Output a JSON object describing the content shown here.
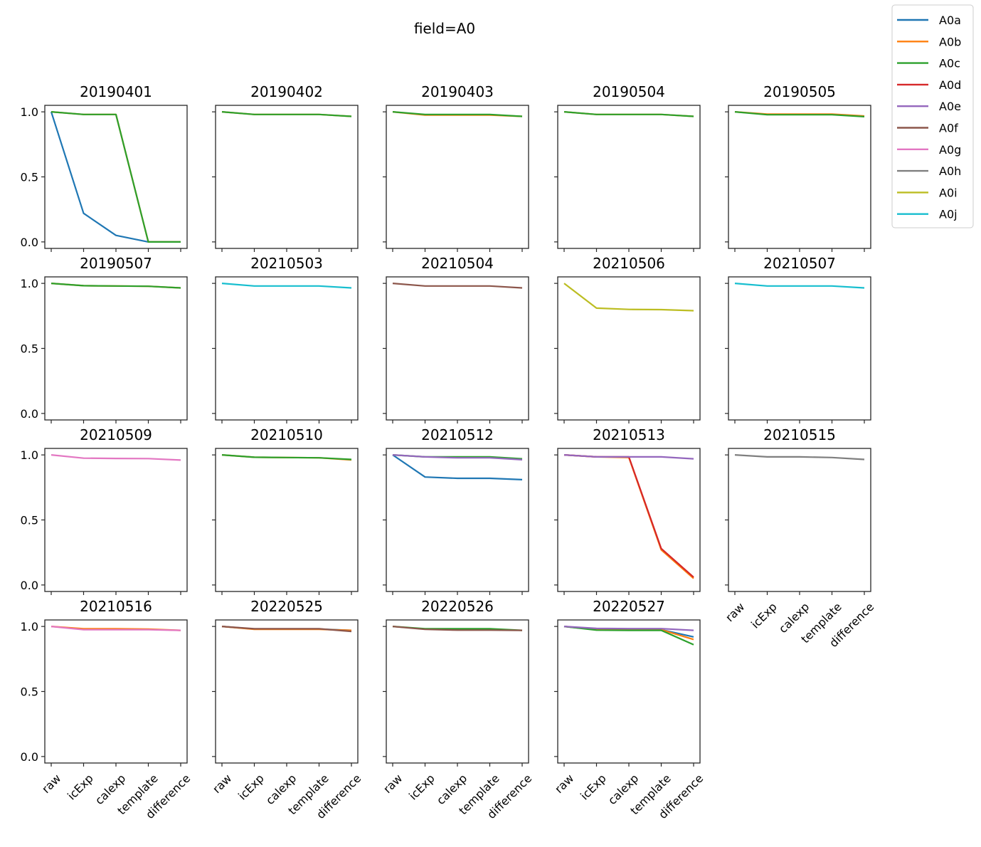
{
  "chart_data": {
    "type": "line",
    "title": "field=A0",
    "xlabel": "",
    "ylabel": "",
    "categories": [
      "raw",
      "icExp",
      "calexp",
      "template",
      "difference"
    ],
    "ylim": [
      -0.05,
      1.05
    ],
    "yticks": [
      0.0,
      0.5,
      1.0
    ],
    "ytick_labels": [
      "0.0",
      "0.5",
      "1.0"
    ],
    "grid": false,
    "legend_placement": "top-right (outside)",
    "legend": [
      {
        "name": "A0a",
        "color": "#1f77b4"
      },
      {
        "name": "A0b",
        "color": "#ff7f0e"
      },
      {
        "name": "A0c",
        "color": "#2ca02c"
      },
      {
        "name": "A0d",
        "color": "#d62728"
      },
      {
        "name": "A0e",
        "color": "#9467bd"
      },
      {
        "name": "A0f",
        "color": "#8c564b"
      },
      {
        "name": "A0g",
        "color": "#e377c2"
      },
      {
        "name": "A0h",
        "color": "#7f7f7f"
      },
      {
        "name": "A0i",
        "color": "#bcbd22"
      },
      {
        "name": "A0j",
        "color": "#17becf"
      }
    ],
    "panels": [
      {
        "title": "20190401",
        "series": [
          {
            "name": "A0a",
            "values": [
              1.0,
              0.22,
              0.05,
              0.0,
              0.0
            ]
          },
          {
            "name": "A0b",
            "values": [
              1.0,
              0.98,
              0.98,
              0.0,
              0.0
            ]
          },
          {
            "name": "A0c",
            "values": [
              1.0,
              0.98,
              0.98,
              0.0,
              0.0
            ]
          }
        ]
      },
      {
        "title": "20190402",
        "series": [
          {
            "name": "A0b",
            "values": [
              1.0,
              0.98,
              0.98,
              0.98,
              0.965
            ]
          },
          {
            "name": "A0c",
            "values": [
              1.0,
              0.98,
              0.98,
              0.98,
              0.965
            ]
          }
        ]
      },
      {
        "title": "20190403",
        "series": [
          {
            "name": "A0b",
            "values": [
              1.0,
              0.975,
              0.975,
              0.975,
              0.965
            ]
          },
          {
            "name": "A0c",
            "values": [
              1.0,
              0.98,
              0.98,
              0.98,
              0.965
            ]
          }
        ]
      },
      {
        "title": "20190504",
        "series": [
          {
            "name": "A0b",
            "values": [
              1.0,
              0.98,
              0.98,
              0.98,
              0.965
            ]
          },
          {
            "name": "A0c",
            "values": [
              1.0,
              0.98,
              0.98,
              0.98,
              0.965
            ]
          }
        ]
      },
      {
        "title": "20190505",
        "series": [
          {
            "name": "A0b",
            "values": [
              1.0,
              0.982,
              0.982,
              0.982,
              0.968
            ]
          },
          {
            "name": "A0c",
            "values": [
              1.0,
              0.978,
              0.978,
              0.978,
              0.963
            ]
          }
        ]
      },
      {
        "title": "20190507",
        "series": [
          {
            "name": "A0b",
            "values": [
              1.0,
              0.982,
              0.98,
              0.978,
              0.965
            ]
          },
          {
            "name": "A0c",
            "values": [
              1.0,
              0.982,
              0.98,
              0.978,
              0.965
            ]
          }
        ]
      },
      {
        "title": "20210503",
        "series": [
          {
            "name": "A0j",
            "values": [
              1.0,
              0.98,
              0.98,
              0.98,
              0.965
            ]
          }
        ]
      },
      {
        "title": "20210504",
        "series": [
          {
            "name": "A0f",
            "values": [
              1.0,
              0.98,
              0.98,
              0.98,
              0.965
            ]
          }
        ]
      },
      {
        "title": "20210506",
        "series": [
          {
            "name": "A0i",
            "values": [
              1.0,
              0.81,
              0.8,
              0.798,
              0.79
            ]
          }
        ]
      },
      {
        "title": "20210507",
        "series": [
          {
            "name": "A0j",
            "values": [
              1.0,
              0.98,
              0.98,
              0.98,
              0.965
            ]
          }
        ]
      },
      {
        "title": "20210509",
        "series": [
          {
            "name": "A0g",
            "values": [
              1.0,
              0.975,
              0.973,
              0.972,
              0.96
            ]
          }
        ]
      },
      {
        "title": "20210510",
        "series": [
          {
            "name": "A0b",
            "values": [
              1.0,
              0.982,
              0.98,
              0.978,
              0.962
            ]
          },
          {
            "name": "A0c",
            "values": [
              1.0,
              0.982,
              0.98,
              0.978,
              0.965
            ]
          }
        ]
      },
      {
        "title": "20210512",
        "series": [
          {
            "name": "A0a",
            "values": [
              1.0,
              0.83,
              0.82,
              0.82,
              0.81
            ]
          },
          {
            "name": "A0c",
            "values": [
              1.0,
              0.985,
              0.985,
              0.985,
              0.97
            ]
          },
          {
            "name": "A0e",
            "values": [
              1.0,
              0.985,
              0.978,
              0.978,
              0.963
            ]
          }
        ]
      },
      {
        "title": "20210513",
        "series": [
          {
            "name": "A0b",
            "values": [
              1.0,
              0.985,
              0.98,
              0.27,
              0.05
            ]
          },
          {
            "name": "A0d",
            "values": [
              1.0,
              0.985,
              0.985,
              0.28,
              0.06
            ]
          },
          {
            "name": "A0e",
            "values": [
              1.0,
              0.985,
              0.985,
              0.985,
              0.97
            ]
          }
        ]
      },
      {
        "title": "20210515",
        "series": [
          {
            "name": "A0h",
            "values": [
              1.0,
              0.985,
              0.985,
              0.98,
              0.965
            ]
          }
        ]
      },
      {
        "title": "20210516",
        "series": [
          {
            "name": "A0b",
            "values": [
              1.0,
              0.982,
              0.982,
              0.98,
              0.97
            ]
          },
          {
            "name": "A0g",
            "values": [
              1.0,
              0.975,
              0.975,
              0.975,
              0.97
            ]
          }
        ]
      },
      {
        "title": "20220525",
        "series": [
          {
            "name": "A0a",
            "values": [
              1.0,
              0.98,
              0.98,
              0.98,
              0.97
            ]
          },
          {
            "name": "A0b",
            "values": [
              1.0,
              0.978,
              0.978,
              0.978,
              0.97
            ]
          },
          {
            "name": "A0f",
            "values": [
              1.0,
              0.982,
              0.982,
              0.982,
              0.962
            ]
          }
        ]
      },
      {
        "title": "20220526",
        "series": [
          {
            "name": "A0c",
            "values": [
              1.0,
              0.982,
              0.982,
              0.982,
              0.97
            ]
          },
          {
            "name": "A0f",
            "values": [
              1.0,
              0.978,
              0.972,
              0.972,
              0.97
            ]
          }
        ]
      },
      {
        "title": "20220527",
        "series": [
          {
            "name": "A0a",
            "values": [
              1.0,
              0.975,
              0.975,
              0.975,
              0.92
            ]
          },
          {
            "name": "A0b",
            "values": [
              1.0,
              0.975,
              0.975,
              0.975,
              0.9
            ]
          },
          {
            "name": "A0c",
            "values": [
              1.0,
              0.972,
              0.97,
              0.97,
              0.86
            ]
          },
          {
            "name": "A0e",
            "values": [
              1.0,
              0.985,
              0.983,
              0.983,
              0.97
            ]
          }
        ]
      }
    ]
  }
}
